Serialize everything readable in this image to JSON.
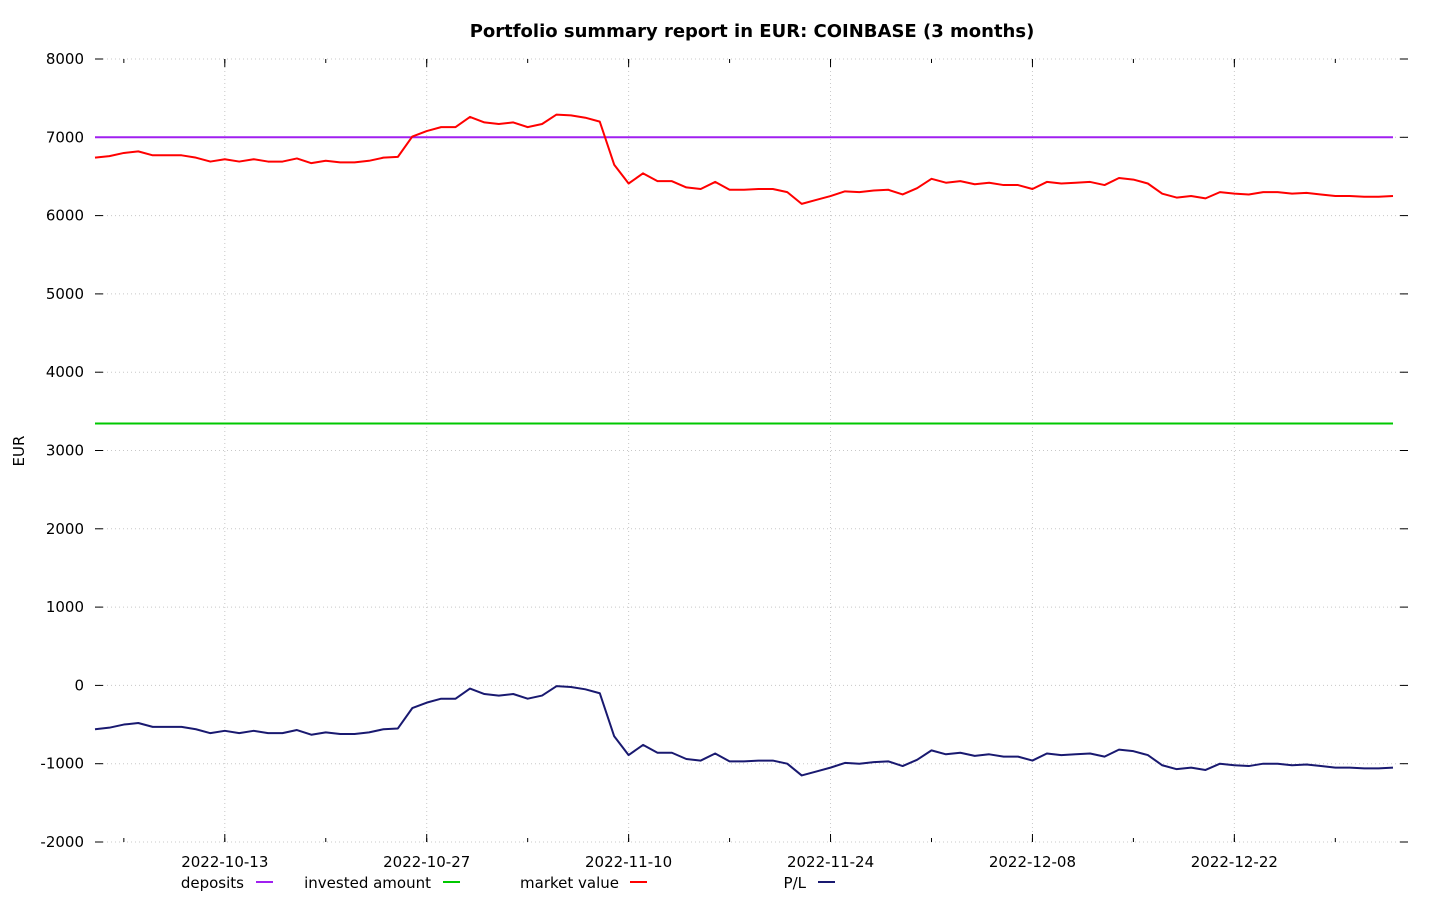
{
  "chart_data": {
    "type": "line",
    "title": "Portfolio summary report in EUR: COINBASE (3 months)",
    "ylabel": "EUR",
    "xlabel": "",
    "ylim": [
      -2000,
      8000
    ],
    "yticks": [
      -2000,
      -1000,
      0,
      1000,
      2000,
      3000,
      4000,
      5000,
      6000,
      7000,
      8000
    ],
    "ytick_labels": [
      "-2000",
      "-1000",
      "0",
      "1000",
      "2000",
      "3000",
      "4000",
      "5000",
      "6000",
      "7000",
      "8000"
    ],
    "xticks": [
      "2022-10-13",
      "2022-10-27",
      "2022-11-10",
      "2022-11-24",
      "2022-12-08",
      "2022-12-22"
    ],
    "grid": true,
    "legend_position": "bottom",
    "x": [
      "2022-10-04",
      "2022-10-05",
      "2022-10-06",
      "2022-10-07",
      "2022-10-08",
      "2022-10-09",
      "2022-10-10",
      "2022-10-11",
      "2022-10-12",
      "2022-10-13",
      "2022-10-14",
      "2022-10-15",
      "2022-10-16",
      "2022-10-17",
      "2022-10-18",
      "2022-10-19",
      "2022-10-20",
      "2022-10-21",
      "2022-10-22",
      "2022-10-23",
      "2022-10-24",
      "2022-10-25",
      "2022-10-26",
      "2022-10-27",
      "2022-10-28",
      "2022-10-29",
      "2022-10-30",
      "2022-10-31",
      "2022-11-01",
      "2022-11-02",
      "2022-11-03",
      "2022-11-04",
      "2022-11-05",
      "2022-11-06",
      "2022-11-07",
      "2022-11-08",
      "2022-11-09",
      "2022-11-10",
      "2022-11-11",
      "2022-11-12",
      "2022-11-13",
      "2022-11-14",
      "2022-11-15",
      "2022-11-16",
      "2022-11-17",
      "2022-11-18",
      "2022-11-19",
      "2022-11-20",
      "2022-11-21",
      "2022-11-22",
      "2022-11-23",
      "2022-11-24",
      "2022-11-25",
      "2022-11-26",
      "2022-11-27",
      "2022-11-28",
      "2022-11-29",
      "2022-11-30",
      "2022-12-01",
      "2022-12-02",
      "2022-12-03",
      "2022-12-04",
      "2022-12-05",
      "2022-12-06",
      "2022-12-07",
      "2022-12-08",
      "2022-12-09",
      "2022-12-10",
      "2022-12-11",
      "2022-12-12",
      "2022-12-13",
      "2022-12-14",
      "2022-12-15",
      "2022-12-16",
      "2022-12-17",
      "2022-12-18",
      "2022-12-19",
      "2022-12-20",
      "2022-12-21",
      "2022-12-22",
      "2022-12-23",
      "2022-12-24",
      "2022-12-25",
      "2022-12-26",
      "2022-12-27",
      "2022-12-28",
      "2022-12-29",
      "2022-12-30",
      "2022-12-31",
      "2023-01-01",
      "2023-01-02"
    ],
    "series": [
      {
        "name": "deposits",
        "color": "#a020f0",
        "values": [
          7000,
          7000,
          7000,
          7000,
          7000,
          7000,
          7000,
          7000,
          7000,
          7000,
          7000,
          7000,
          7000,
          7000,
          7000,
          7000,
          7000,
          7000,
          7000,
          7000,
          7000,
          7000,
          7000,
          7000,
          7000,
          7000,
          7000,
          7000,
          7000,
          7000,
          7000,
          7000,
          7000,
          7000,
          7000,
          7000,
          7000,
          7000,
          7000,
          7000,
          7000,
          7000,
          7000,
          7000,
          7000,
          7000,
          7000,
          7000,
          7000,
          7000,
          7000,
          7000,
          7000,
          7000,
          7000,
          7000,
          7000,
          7000,
          7000,
          7000,
          7000,
          7000,
          7000,
          7000,
          7000,
          7000,
          7000,
          7000,
          7000,
          7000,
          7000,
          7000,
          7000,
          7000,
          7000,
          7000,
          7000,
          7000,
          7000,
          7000,
          7000,
          7000,
          7000,
          7000,
          7000,
          7000,
          7000,
          7000,
          7000,
          7000,
          7000
        ]
      },
      {
        "name": "invested amount",
        "color": "#00c800",
        "values": [
          3345,
          3345,
          3345,
          3345,
          3345,
          3345,
          3345,
          3345,
          3345,
          3345,
          3345,
          3345,
          3345,
          3345,
          3345,
          3345,
          3345,
          3345,
          3345,
          3345,
          3345,
          3345,
          3345,
          3345,
          3345,
          3345,
          3345,
          3345,
          3345,
          3345,
          3345,
          3345,
          3345,
          3345,
          3345,
          3345,
          3345,
          3345,
          3345,
          3345,
          3345,
          3345,
          3345,
          3345,
          3345,
          3345,
          3345,
          3345,
          3345,
          3345,
          3345,
          3345,
          3345,
          3345,
          3345,
          3345,
          3345,
          3345,
          3345,
          3345,
          3345,
          3345,
          3345,
          3345,
          3345,
          3345,
          3345,
          3345,
          3345,
          3345,
          3345,
          3345,
          3345,
          3345,
          3345,
          3345,
          3345,
          3345,
          3345,
          3345,
          3345,
          3345,
          3345,
          3345,
          3345,
          3345,
          3345,
          3345,
          3345,
          3345,
          3345
        ]
      },
      {
        "name": "market value",
        "color": "#ff0000",
        "values": [
          6740,
          6760,
          6800,
          6820,
          6770,
          6770,
          6770,
          6740,
          6690,
          6720,
          6690,
          6720,
          6690,
          6690,
          6730,
          6670,
          6700,
          6680,
          6680,
          6700,
          6740,
          6750,
          7010,
          7080,
          7130,
          7130,
          7260,
          7190,
          7170,
          7190,
          7130,
          7170,
          7290,
          7280,
          7250,
          7200,
          6650,
          6410,
          6540,
          6440,
          6440,
          6360,
          6340,
          6430,
          6330,
          6330,
          6340,
          6340,
          6300,
          6150,
          6200,
          6250,
          6310,
          6300,
          6320,
          6330,
          6270,
          6350,
          6470,
          6420,
          6440,
          6400,
          6420,
          6390,
          6390,
          6340,
          6430,
          6410,
          6420,
          6430,
          6390,
          6480,
          6460,
          6410,
          6280,
          6230,
          6250,
          6220,
          6300,
          6280,
          6270,
          6300,
          6300,
          6280,
          6290,
          6270,
          6250,
          6250,
          6240,
          6240,
          6250
        ]
      },
      {
        "name": "P/L",
        "color": "#191970",
        "values": [
          -560,
          -540,
          -500,
          -480,
          -530,
          -530,
          -530,
          -560,
          -610,
          -580,
          -610,
          -580,
          -610,
          -610,
          -570,
          -630,
          -600,
          -620,
          -620,
          -600,
          -560,
          -550,
          -290,
          -220,
          -170,
          -170,
          -40,
          -110,
          -130,
          -110,
          -170,
          -130,
          -10,
          -20,
          -50,
          -100,
          -650,
          -890,
          -760,
          -860,
          -860,
          -940,
          -960,
          -870,
          -970,
          -970,
          -960,
          -960,
          -1000,
          -1150,
          -1100,
          -1050,
          -990,
          -1000,
          -980,
          -970,
          -1030,
          -950,
          -830,
          -880,
          -860,
          -900,
          -880,
          -910,
          -910,
          -960,
          -870,
          -890,
          -880,
          -870,
          -910,
          -820,
          -840,
          -890,
          -1020,
          -1070,
          -1050,
          -1080,
          -1000,
          -1020,
          -1030,
          -1000,
          -1000,
          -1020,
          -1010,
          -1030,
          -1050,
          -1050,
          -1060,
          -1060,
          -1050
        ]
      }
    ]
  }
}
